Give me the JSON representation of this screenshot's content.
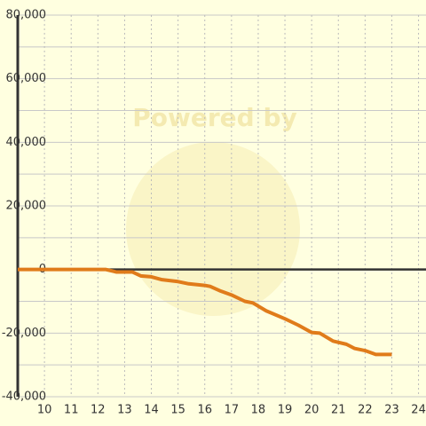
{
  "chart_data": {
    "type": "line",
    "watermark": "Powered by",
    "x": [
      9,
      12.3,
      12.7,
      13.3,
      13.6,
      14,
      14.4,
      15,
      15.4,
      16,
      16.2,
      16.6,
      17,
      17.5,
      17.8,
      18.3,
      19,
      19.5,
      20,
      20.3,
      20.8,
      21.3,
      21.6,
      22,
      22.4,
      23
    ],
    "series": [
      {
        "color": "#e07b1a",
        "values": [
          0,
          0,
          -800,
          -800,
          -2000,
          -2300,
          -3200,
          -3800,
          -4500,
          -5000,
          -5300,
          -6800,
          -8000,
          -10000,
          -10500,
          -13000,
          -15500,
          -17500,
          -19800,
          -20000,
          -22500,
          -23500,
          -24800,
          -25500,
          -26700,
          -26700
        ]
      }
    ],
    "xlim": [
      9,
      24.28
    ],
    "xticks": [
      10,
      11,
      12,
      13,
      14,
      15,
      16,
      17,
      18,
      19,
      20,
      21,
      22,
      23,
      24
    ],
    "ylim": [
      -40000,
      80000
    ],
    "yticks": [
      {
        "value": -40000,
        "label": "-40,000"
      },
      {
        "value": -20000,
        "label": "-20,000"
      },
      0,
      {
        "value": 20000,
        "label": "20,000"
      },
      {
        "value": 40000,
        "label": "40,000"
      },
      {
        "value": 60000,
        "label": "60,000"
      },
      {
        "value": 80000,
        "label": "80,000"
      }
    ],
    "minor_yticks": [
      -30000,
      -10000,
      10000,
      30000,
      50000,
      70000
    ],
    "grid": true
  }
}
